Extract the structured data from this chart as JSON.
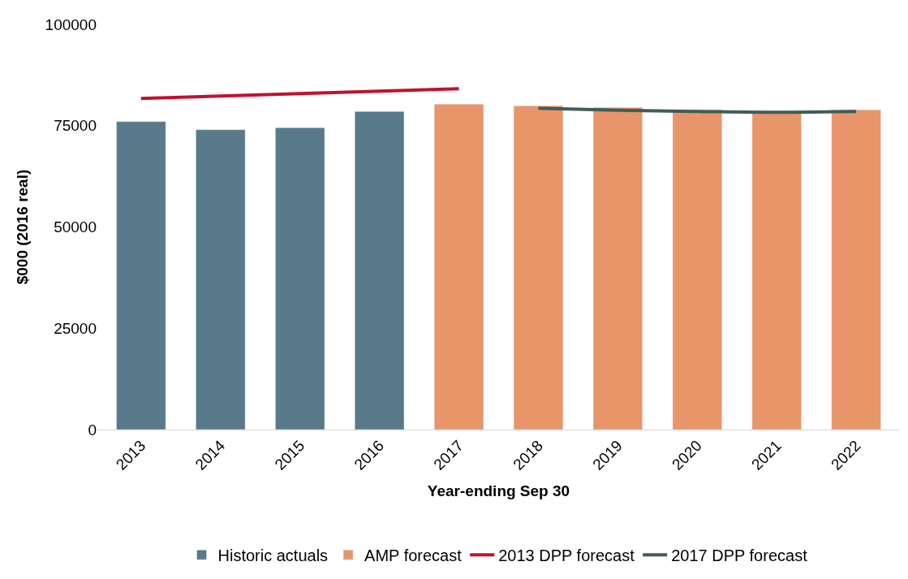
{
  "chart_data": {
    "type": "bar",
    "xlabel": "Year-ending Sep 30",
    "ylabel": "$000 (2016 real)",
    "categories": [
      "2013",
      "2014",
      "2015",
      "2016",
      "2017",
      "2018",
      "2019",
      "2020",
      "2021",
      "2022"
    ],
    "series": [
      {
        "name": "Historic actuals",
        "color": "#587a8a",
        "values": [
          76000,
          74000,
          74500,
          78500,
          null,
          null,
          null,
          null,
          null,
          null
        ]
      },
      {
        "name": "AMP forecast",
        "color": "#e8956a",
        "values": [
          null,
          null,
          null,
          null,
          80300,
          79900,
          79500,
          78900,
          78500,
          78900
        ]
      },
      {
        "name": "2013 DPP forecast",
        "type": "line",
        "color": "#c0112f",
        "values": [
          81700,
          82300,
          82900,
          83500,
          84100,
          null,
          null,
          null,
          null,
          null
        ]
      },
      {
        "name": "2017 DPP forecast",
        "type": "line",
        "color": "#3f5e57",
        "values": [
          null,
          null,
          null,
          null,
          null,
          79300,
          78800,
          78500,
          78300,
          78500
        ]
      }
    ],
    "ylim": [
      0,
      100000
    ],
    "yticks": [
      0,
      25000,
      50000,
      75000,
      100000
    ],
    "legend": "bottom"
  }
}
